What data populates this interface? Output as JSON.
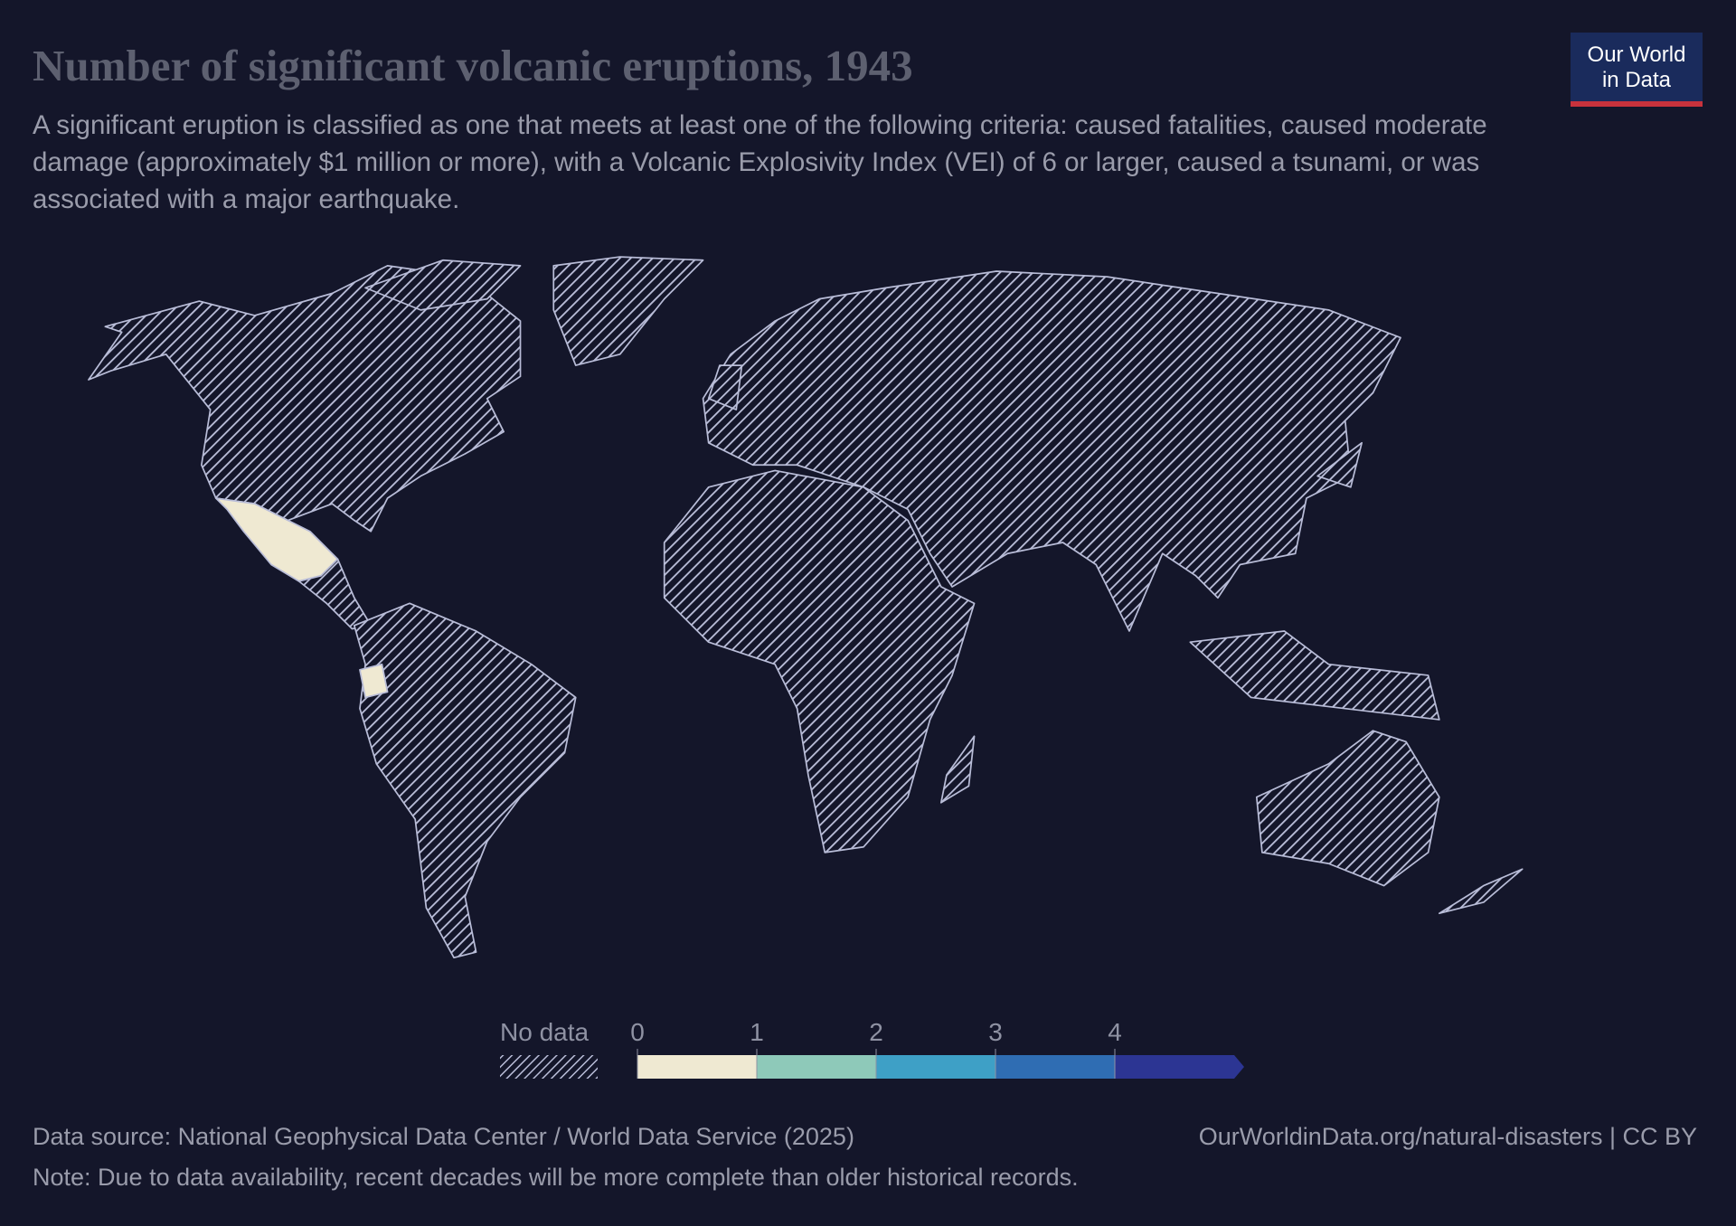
{
  "header": {
    "title": "Number of significant volcanic eruptions, 1943",
    "subtitle": "A significant eruption is classified as one that meets at least one of the following criteria: caused fatalities, caused moderate damage (approximately $1 million or more), with a Volcanic Explosivity Index (VEI) of 6 or larger, caused a tsunami, or was associated with a major earthquake."
  },
  "logo": {
    "line1": "Our World",
    "line2": "in Data"
  },
  "legend": {
    "no_data_label": "No data",
    "ticks": [
      0,
      1,
      2,
      3,
      4
    ],
    "colors": [
      "#efe9d2",
      "#8ec9b9",
      "#3ea0c6",
      "#2f6db3",
      "#2c3593"
    ]
  },
  "footer": {
    "source": "Data source: National Geophysical Data Center / World Data Service (2025)",
    "url": "OurWorldinData.org/natural-disasters | CC BY",
    "note": "Note: Due to data availability, recent decades will be more complete than older historical records."
  }
}
